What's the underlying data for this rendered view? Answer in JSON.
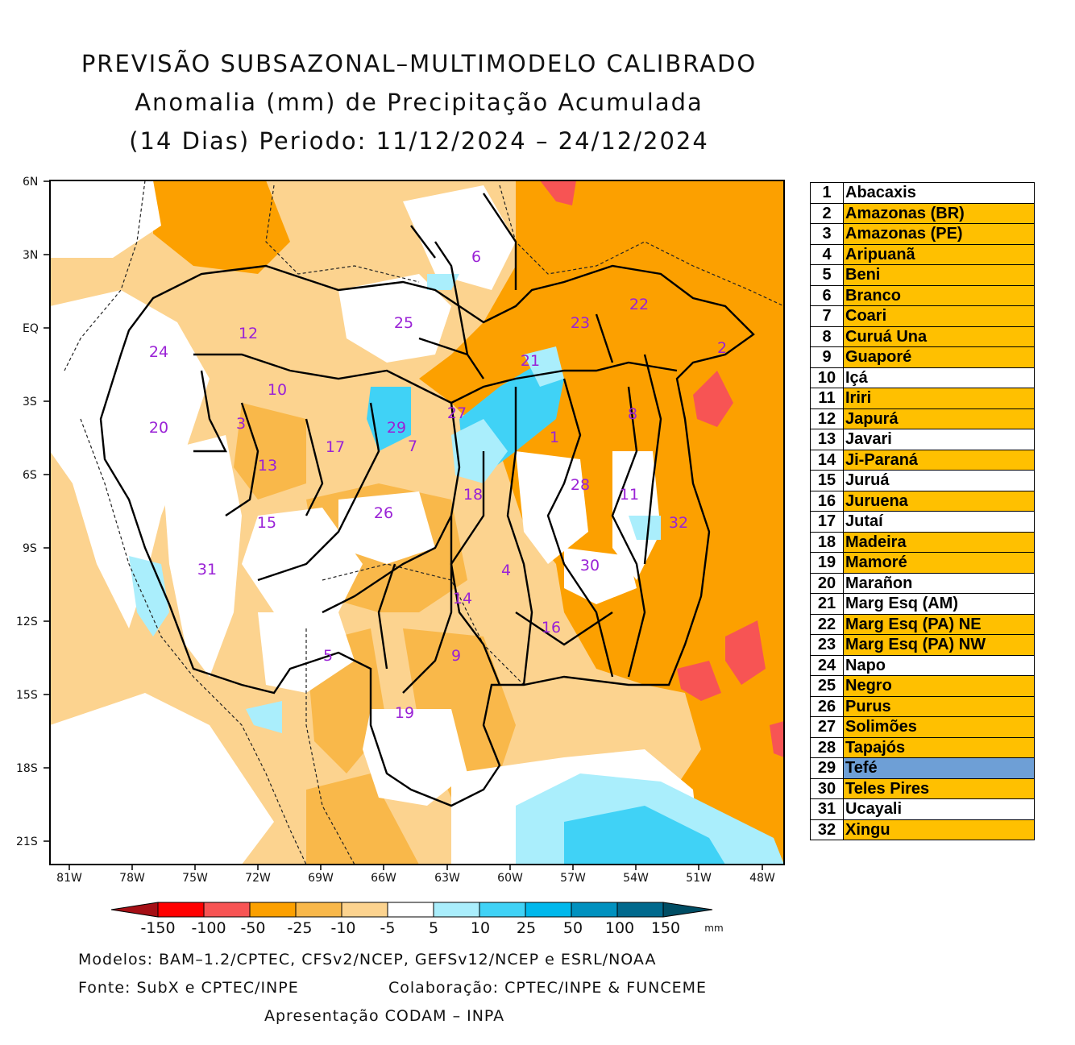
{
  "title": {
    "line1": "PREVISÃO SUBSAZONAL–MULTIMODELO CALIBRADO",
    "line2": "Anomalia (mm) de Precipitação Acumulada",
    "line3": "(14 Dias) Periodo: 11/12/2024 – 24/12/2024"
  },
  "axes": {
    "lat_labels": [
      "6N",
      "3N",
      "EQ",
      "3S",
      "6S",
      "9S",
      "12S",
      "15S",
      "18S",
      "21S"
    ],
    "lon_labels": [
      "81W",
      "78W",
      "75W",
      "72W",
      "69W",
      "66W",
      "63W",
      "60W",
      "57W",
      "54W",
      "51W",
      "48W"
    ]
  },
  "basin_labels": [
    "1",
    "2",
    "3",
    "4",
    "5",
    "6",
    "7",
    "8",
    "9",
    "10",
    "11",
    "12",
    "13",
    "14",
    "15",
    "16",
    "17",
    "18",
    "19",
    "20",
    "21",
    "22",
    "23",
    "24",
    "25",
    "26",
    "27",
    "28",
    "29",
    "30",
    "31",
    "32"
  ],
  "colorbar": {
    "ticks": [
      "-150",
      "-100",
      "-50",
      "-25",
      "-10",
      "-5",
      "5",
      "10",
      "25",
      "50",
      "100",
      "150"
    ],
    "unit": "mm",
    "colors": [
      "#a50f15",
      "#ff0000",
      "#f75454",
      "#fca000",
      "#f9b84a",
      "#fcd38f",
      "#ffffff",
      "#aaeefc",
      "#40d2f6",
      "#00b8ec",
      "#0091bf",
      "#00698d",
      "#004d64"
    ]
  },
  "legend": [
    {
      "num": "1",
      "name": "Abacaxis",
      "color": "#ffffff"
    },
    {
      "num": "2",
      "name": "Amazonas (BR)",
      "color": "#ffc000"
    },
    {
      "num": "3",
      "name": "Amazonas (PE)",
      "color": "#ffc000"
    },
    {
      "num": "4",
      "name": "Aripuanã",
      "color": "#ffc000"
    },
    {
      "num": "5",
      "name": "Beni",
      "color": "#ffc000"
    },
    {
      "num": "6",
      "name": "Branco",
      "color": "#ffc000"
    },
    {
      "num": "7",
      "name": "Coari",
      "color": "#ffc000"
    },
    {
      "num": "8",
      "name": "Curuá Una",
      "color": "#ffc000"
    },
    {
      "num": "9",
      "name": "Guaporé",
      "color": "#ffc000"
    },
    {
      "num": "10",
      "name": "Içá",
      "color": "#ffffff"
    },
    {
      "num": "11",
      "name": "Iriri",
      "color": "#ffc000"
    },
    {
      "num": "12",
      "name": "Japurá",
      "color": "#ffc000"
    },
    {
      "num": "13",
      "name": "Javari",
      "color": "#ffffff"
    },
    {
      "num": "14",
      "name": "Ji-Paraná",
      "color": "#ffc000"
    },
    {
      "num": "15",
      "name": "Juruá",
      "color": "#ffffff"
    },
    {
      "num": "16",
      "name": "Juruena",
      "color": "#ffc000"
    },
    {
      "num": "17",
      "name": "Jutaí",
      "color": "#ffffff"
    },
    {
      "num": "18",
      "name": "Madeira",
      "color": "#ffc000"
    },
    {
      "num": "19",
      "name": "Mamoré",
      "color": "#ffc000"
    },
    {
      "num": "20",
      "name": "Marañon",
      "color": "#ffffff"
    },
    {
      "num": "21",
      "name": "Marg Esq (AM)",
      "color": "#ffffff"
    },
    {
      "num": "22",
      "name": "Marg Esq (PA) NE",
      "color": "#ffc000"
    },
    {
      "num": "23",
      "name": "Marg Esq (PA) NW",
      "color": "#ffc000"
    },
    {
      "num": "24",
      "name": "Napo",
      "color": "#ffffff"
    },
    {
      "num": "25",
      "name": "Negro",
      "color": "#ffc000"
    },
    {
      "num": "26",
      "name": "Purus",
      "color": "#ffc000"
    },
    {
      "num": "27",
      "name": "Solimões",
      "color": "#ffc000"
    },
    {
      "num": "28",
      "name": "Tapajós",
      "color": "#ffc000"
    },
    {
      "num": "29",
      "name": "Tefé",
      "color": "#6e9fd6"
    },
    {
      "num": "30",
      "name": "Teles Pires",
      "color": "#ffc000"
    },
    {
      "num": "31",
      "name": "Ucayali",
      "color": "#ffffff"
    },
    {
      "num": "32",
      "name": "Xingu",
      "color": "#ffc000"
    }
  ],
  "footer": {
    "models": "Modelos: BAM–1.2/CPTEC, CFSv2/NCEP, GEFSv12/NCEP e ESRL/NOAA",
    "source": "Fonte: SubX e CPTEC/INPE",
    "collab": "Colaboração: CPTEC/INPE & FUNCEME",
    "presentation": "Apresentação CODAM – INPA"
  }
}
